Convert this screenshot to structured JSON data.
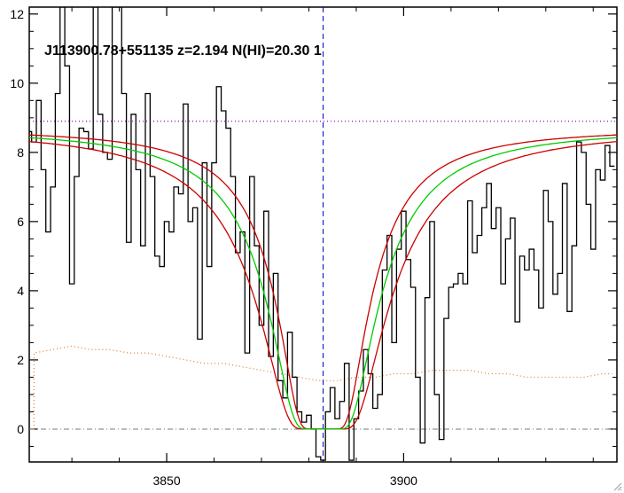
{
  "chart_data": {
    "type": "line",
    "title": "J113900.78+551135 z=2.194 N(HI)=20.30 1",
    "xlabel": "",
    "ylabel": "",
    "xlim": [
      3821,
      3945
    ],
    "ylim": [
      -0.95,
      12.2
    ],
    "x_ticks": [
      3850,
      3900
    ],
    "y_ticks": [
      0,
      2,
      4,
      6,
      8,
      10,
      12
    ],
    "grid": false,
    "colors": {
      "flux": "#000000",
      "model": "#00cc00",
      "model_bounds": "#cc0000",
      "continuum": "#9900cc",
      "error": "#e07a20",
      "zero": "#7a7a7a",
      "line_center": "#0000cc"
    },
    "continuum_level": 8.9,
    "line_center_x": 3883,
    "model": {
      "center": 3883,
      "continuum_start": 8.7,
      "continuum_end": 8.7,
      "column_density_log": 20.3,
      "lower_log": 20.15,
      "upper_log": 20.45
    },
    "series": [
      {
        "x": [
          3821,
          3822,
          3823,
          3824,
          3825,
          3826,
          3827,
          3828,
          3829,
          3830,
          3831,
          3832,
          3833,
          3834,
          3835,
          3836,
          3837,
          3838,
          3839,
          3840,
          3841,
          3842,
          3843,
          3844,
          3845,
          3846,
          3847,
          3848,
          3849,
          3850,
          3851,
          3852,
          3853,
          3854,
          3855,
          3856,
          3857,
          3858,
          3859,
          3860,
          3861,
          3862,
          3863,
          3864,
          3865,
          3866,
          3867,
          3868,
          3869,
          3870,
          3871,
          3872,
          3873,
          3874,
          3875,
          3876,
          3877,
          3878,
          3879,
          3880,
          3881,
          3882,
          3883,
          3884,
          3885,
          3886,
          3887,
          3888,
          3889,
          3890,
          3891,
          3892,
          3893,
          3894,
          3895,
          3896,
          3897,
          3898,
          3899,
          3900,
          3901,
          3902,
          3903,
          3904,
          3905,
          3906,
          3907,
          3908,
          3909,
          3910,
          3911,
          3912,
          3913,
          3914,
          3915,
          3916,
          3917,
          3918,
          3919,
          3920,
          3921,
          3922,
          3923,
          3924,
          3925,
          3926,
          3927,
          3928,
          3929,
          3930,
          3931,
          3932,
          3933,
          3934,
          3935,
          3936,
          3937,
          3938,
          3939,
          3940,
          3941,
          3942,
          3943,
          3944
        ],
        "values": [
          8.6,
          8.3,
          9.5,
          7.5,
          5.7,
          7.0,
          9.7,
          12.2,
          10.5,
          4.2,
          7.3,
          8.7,
          8.6,
          8.1,
          12.2,
          9.1,
          8.0,
          7.8,
          12.2,
          12.2,
          9.7,
          5.4,
          9.1,
          7.5,
          5.3,
          9.7,
          7.3,
          5.0,
          4.7,
          6.0,
          5.7,
          7.0,
          6.8,
          9.4,
          6.0,
          6.4,
          2.6,
          7.7,
          4.7,
          7.7,
          9.9,
          9.2,
          8.7,
          7.3,
          5.1,
          5.7,
          2.2,
          7.3,
          5.3,
          3.0,
          6.3,
          2.1,
          4.5,
          1.4,
          0.9,
          2.8,
          1.5,
          0.5,
          0.2,
          0.4,
          0.0,
          -0.8,
          -0.9,
          0.5,
          1.2,
          0.3,
          0.8,
          1.9,
          -0.9,
          0.3,
          1.1,
          2.3,
          1.6,
          0.6,
          1.0,
          4.6,
          5.6,
          2.5,
          5.2,
          6.3,
          4.9,
          4.1,
          1.5,
          -0.4,
          3.8,
          6.0,
          1.0,
          -0.3,
          3.2,
          4.1,
          4.2,
          4.5,
          4.2,
          6.6,
          5.1,
          5.6,
          6.4,
          7.1,
          5.8,
          6.4,
          4.2,
          5.5,
          6.1,
          3.1,
          5.0,
          4.6,
          5.2,
          4.6,
          3.5,
          6.9,
          6.0,
          3.9,
          4.5,
          7.1,
          3.4,
          5.3,
          8.3,
          8.0,
          6.5,
          5.2,
          7.5,
          7.2,
          8.2,
          7.6
        ]
      }
    ],
    "error_series": {
      "x": [
        3822,
        3826,
        3830,
        3834,
        3838,
        3842,
        3846,
        3850,
        3854,
        3858,
        3862,
        3866,
        3870,
        3874,
        3878,
        3882,
        3886,
        3890,
        3894,
        3898,
        3902,
        3906,
        3910,
        3914,
        3918,
        3922,
        3926,
        3930,
        3934,
        3938,
        3942,
        3944
      ],
      "values": [
        2.2,
        2.3,
        2.4,
        2.3,
        2.3,
        2.2,
        2.2,
        2.1,
        2.0,
        1.9,
        1.9,
        1.8,
        1.7,
        1.6,
        1.5,
        1.4,
        1.4,
        1.5,
        1.5,
        1.6,
        1.6,
        1.7,
        1.7,
        1.7,
        1.6,
        1.6,
        1.5,
        1.5,
        1.5,
        1.5,
        1.6,
        1.6
      ]
    }
  },
  "window": {
    "resize_icon": "resize-grip-icon"
  }
}
